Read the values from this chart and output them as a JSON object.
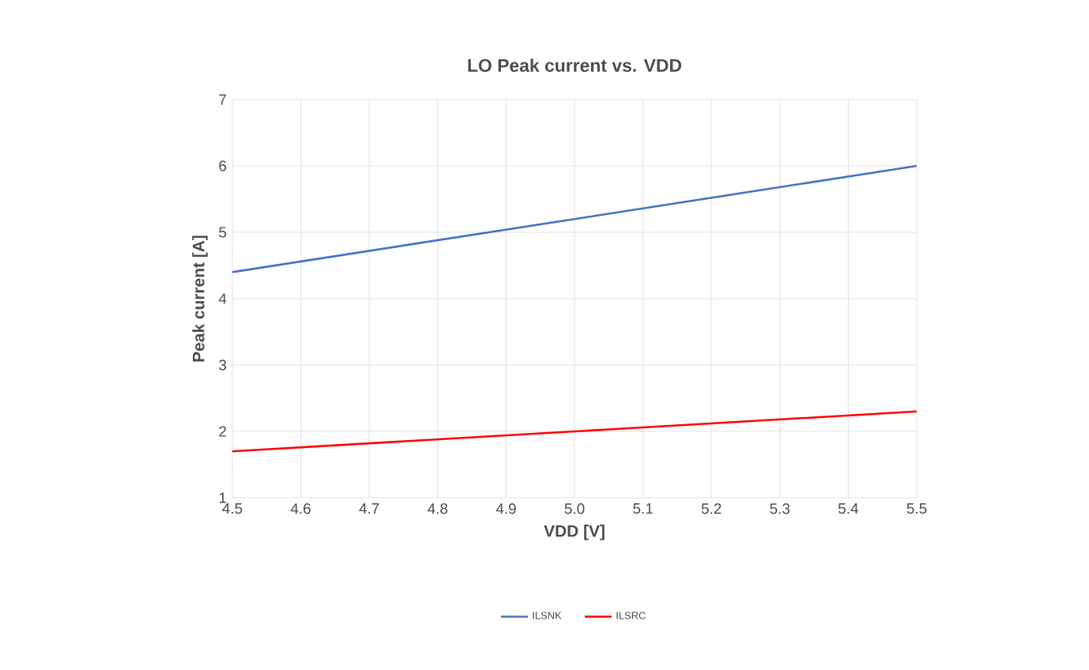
{
  "chart_data": {
    "type": "line",
    "title": "LO Peak current vs. VDD",
    "xlabel": "VDD [V]",
    "ylabel": "Peak current [A]",
    "x": [
      4.5,
      5.0,
      5.5
    ],
    "series": [
      {
        "name": "ILSNK",
        "color": "#4472c4",
        "values": [
          4.4,
          5.2,
          6.0
        ]
      },
      {
        "name": "ILSRC",
        "color": "#ff0000",
        "values": [
          1.7,
          2.0,
          2.3
        ]
      }
    ],
    "xlim": [
      4.5,
      5.5
    ],
    "ylim": [
      1,
      7
    ],
    "xticks": [
      4.5,
      4.6,
      4.7,
      4.8,
      4.9,
      {
        "value": 5.0,
        "label": "5.0"
      },
      5.1,
      5.2,
      5.3,
      5.4,
      5.5
    ],
    "yticks": [
      1,
      2,
      3,
      4,
      5,
      6,
      7
    ],
    "grid": true,
    "legend": "bottom",
    "marker": "none",
    "line_style": "solid"
  }
}
